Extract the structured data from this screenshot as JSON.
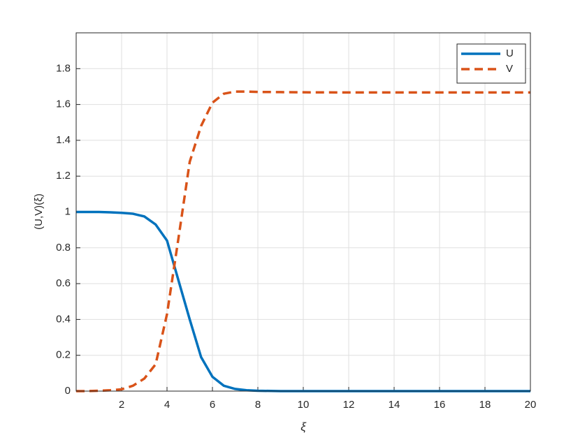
{
  "chart_data": {
    "type": "line",
    "xlabel": "ξ",
    "ylabel": "(U,V)(ξ)",
    "x": [
      0,
      0.5,
      1,
      1.5,
      2,
      2.5,
      3,
      3.5,
      4,
      4.5,
      5,
      5.5,
      6,
      6.5,
      7,
      7.5,
      8,
      9,
      10,
      12,
      14,
      16,
      18,
      20
    ],
    "series": [
      {
        "name": "U",
        "color": "#0072bd",
        "line_style": "solid",
        "values": [
          1,
          1,
          1,
          0.998,
          0.995,
          0.99,
          0.975,
          0.93,
          0.84,
          0.62,
          0.4,
          0.19,
          0.08,
          0.03,
          0.012,
          0.005,
          0.002,
          0,
          0,
          0,
          0,
          0,
          0,
          0
        ]
      },
      {
        "name": "V",
        "color": "#d95319",
        "line_style": "dashed",
        "values": [
          0,
          0,
          0.002,
          0.005,
          0.01,
          0.03,
          0.07,
          0.15,
          0.43,
          0.85,
          1.28,
          1.48,
          1.61,
          1.66,
          1.672,
          1.672,
          1.67,
          1.669,
          1.668,
          1.667,
          1.667,
          1.667,
          1.667,
          1.667
        ]
      }
    ],
    "xlim": [
      0,
      20
    ],
    "xticks": [
      2,
      4,
      6,
      8,
      10,
      12,
      14,
      16,
      18,
      20
    ],
    "ylim": [
      0,
      2
    ],
    "yticks": [
      0,
      0.2,
      0.4,
      0.6,
      0.8,
      1,
      1.2,
      1.4,
      1.6,
      1.8
    ],
    "grid": true,
    "legend": "upper-right"
  }
}
